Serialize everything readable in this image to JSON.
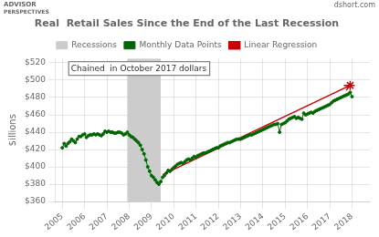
{
  "chart_data": {
    "type": "line",
    "title": "Real  Retail Sales Since the End of the Last Recession",
    "ylabel": "$illions",
    "annotation": "Chained  in October 2017 dollars",
    "watermarks": [
      "ADVISOR",
      "PERSPECTIVES",
      "dshort.com"
    ],
    "xlim": [
      2004.7,
      2018.8
    ],
    "xticks": [
      2005,
      2006,
      2007,
      2008,
      2009,
      2010,
      2011,
      2012,
      2013,
      2014,
      2015,
      2016,
      2017,
      2018
    ],
    "ylim": [
      360,
      525
    ],
    "yticks": [
      {
        "value": 360,
        "label": "$360"
      },
      {
        "value": 380,
        "label": "$380"
      },
      {
        "value": 400,
        "label": "$400"
      },
      {
        "value": 420,
        "label": "$420"
      },
      {
        "value": 440,
        "label": "$440"
      },
      {
        "value": 460,
        "label": "$460"
      },
      {
        "value": 480,
        "label": "$480"
      },
      {
        "value": 500,
        "label": "$500"
      },
      {
        "value": 520,
        "label": "$520"
      }
    ],
    "grid": true,
    "legend": "top",
    "series": [
      {
        "name": "Recessions",
        "type": "span",
        "color": "#cccccc",
        "x": [
          2007.917,
          2009.417
        ]
      },
      {
        "name": "Monthly Data Points",
        "type": "line",
        "marker": "circle",
        "color": "#006600",
        "x": [
          2005.0,
          2005.083,
          2005.167,
          2005.25,
          2005.333,
          2005.417,
          2005.5,
          2005.583,
          2005.667,
          2005.75,
          2005.833,
          2005.917,
          2006.0,
          2006.083,
          2006.167,
          2006.25,
          2006.333,
          2006.417,
          2006.5,
          2006.583,
          2006.667,
          2006.75,
          2006.833,
          2006.917,
          2007.0,
          2007.083,
          2007.167,
          2007.25,
          2007.333,
          2007.417,
          2007.5,
          2007.583,
          2007.667,
          2007.75,
          2007.833,
          2007.917,
          2008.0,
          2008.083,
          2008.167,
          2008.25,
          2008.333,
          2008.417,
          2008.5,
          2008.583,
          2008.667,
          2008.75,
          2008.833,
          2008.917,
          2009.0,
          2009.083,
          2009.167,
          2009.25,
          2009.333,
          2009.417,
          2009.5,
          2009.583,
          2009.667,
          2009.75,
          2009.833,
          2009.917,
          2010.0,
          2010.083,
          2010.167,
          2010.25,
          2010.333,
          2010.417,
          2010.5,
          2010.583,
          2010.667,
          2010.75,
          2010.833,
          2010.917,
          2011.0,
          2011.083,
          2011.167,
          2011.25,
          2011.333,
          2011.417,
          2011.5,
          2011.583,
          2011.667,
          2011.75,
          2011.833,
          2011.917,
          2012.0,
          2012.083,
          2012.167,
          2012.25,
          2012.333,
          2012.417,
          2012.5,
          2012.583,
          2012.667,
          2012.75,
          2012.833,
          2012.917,
          2013.0,
          2013.083,
          2013.167,
          2013.25,
          2013.333,
          2013.417,
          2013.5,
          2013.583,
          2013.667,
          2013.75,
          2013.833,
          2013.917,
          2014.0,
          2014.083,
          2014.167,
          2014.25,
          2014.333,
          2014.417,
          2014.5,
          2014.583,
          2014.667,
          2014.75,
          2014.833,
          2014.917,
          2015.0,
          2015.083,
          2015.167,
          2015.25,
          2015.333,
          2015.417,
          2015.5,
          2015.583,
          2015.667,
          2015.75,
          2015.833,
          2015.917,
          2016.0,
          2016.083,
          2016.167,
          2016.25,
          2016.333,
          2016.417,
          2016.5,
          2016.583,
          2016.667,
          2016.75,
          2016.833,
          2016.917,
          2017.0,
          2017.083,
          2017.167,
          2017.25,
          2017.333,
          2017.417,
          2017.5,
          2017.583,
          2017.667,
          2017.75,
          2017.833,
          2017.917,
          2018.0
        ],
        "values": [
          422,
          427,
          424,
          427,
          429,
          432,
          430,
          428,
          432,
          435,
          435,
          437,
          438,
          434,
          436,
          437,
          437,
          438,
          437,
          438,
          437,
          436,
          438,
          441,
          440,
          441,
          440,
          440,
          439,
          439,
          440,
          440,
          439,
          437,
          438,
          440,
          437,
          435,
          434,
          432,
          430,
          428,
          425,
          420,
          415,
          408,
          400,
          395,
          390,
          388,
          385,
          382,
          380,
          383,
          388,
          390,
          393,
          396,
          395,
          397,
          399,
          401,
          403,
          404,
          405,
          404,
          406,
          408,
          409,
          408,
          410,
          412,
          411,
          413,
          414,
          415,
          416,
          416,
          417,
          418,
          419,
          420,
          421,
          422,
          422,
          424,
          425,
          426,
          427,
          428,
          428,
          429,
          430,
          431,
          432,
          432,
          432,
          433,
          434,
          435,
          436,
          437,
          437,
          438,
          439,
          440,
          441,
          442,
          443,
          444,
          445,
          446,
          447,
          448,
          449,
          449,
          450,
          440,
          449,
          450,
          451,
          453,
          455,
          456,
          457,
          458,
          456,
          457,
          456,
          455,
          462,
          460,
          461,
          462,
          463,
          462,
          464,
          465,
          466,
          467,
          468,
          469,
          470,
          471,
          472,
          474,
          476,
          477,
          478,
          479,
          480,
          481,
          482,
          483,
          484,
          486,
          481
        ]
      },
      {
        "name": "Linear Regression",
        "type": "arrow",
        "color": "#cc0000",
        "x": [
          2009.5,
          2017.917
        ],
        "values": [
          391,
          494
        ]
      },
      {
        "type": "scatter",
        "marker": "star",
        "color": "#cc0000",
        "x": [
          2017.917
        ],
        "values": [
          494
        ]
      }
    ]
  }
}
